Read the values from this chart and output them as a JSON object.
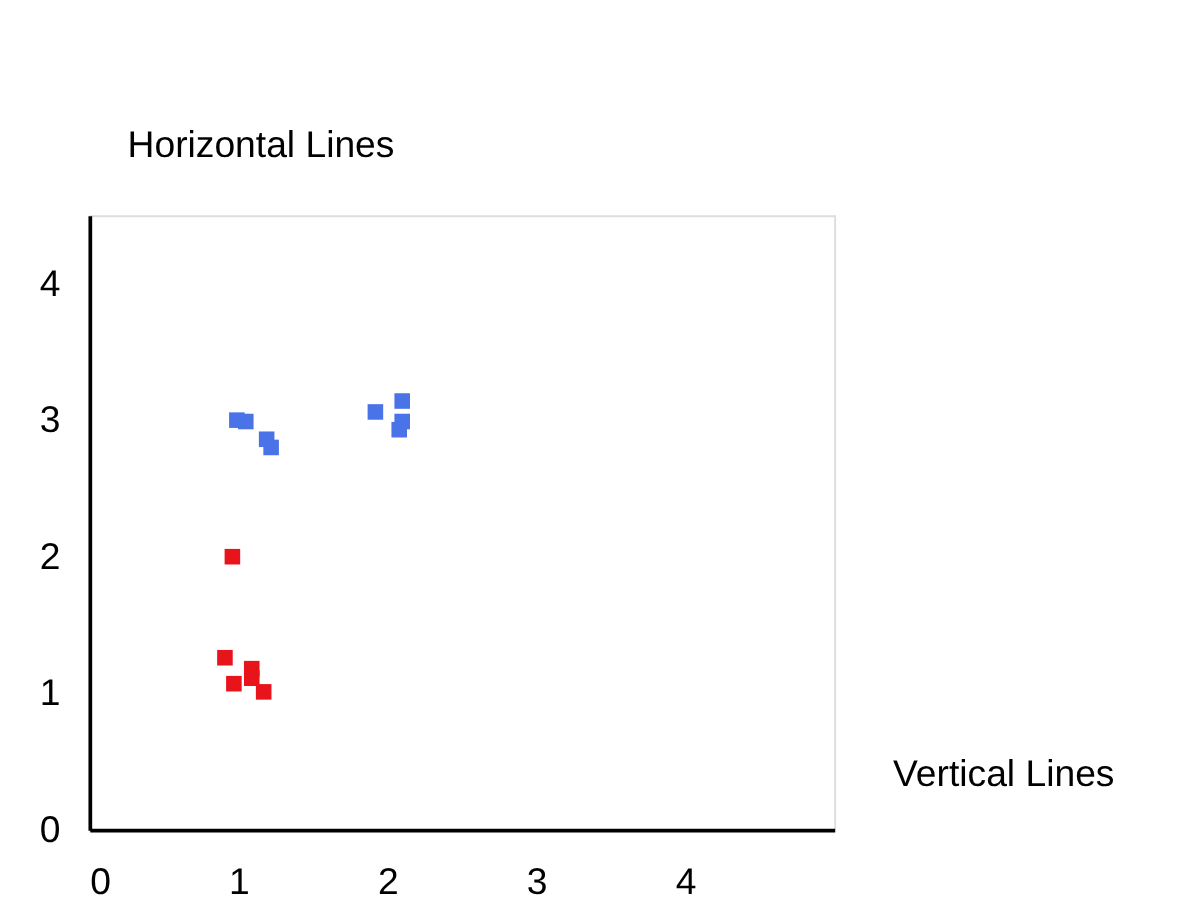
{
  "chart_data": {
    "type": "scatter",
    "xlabel": "Vertical Lines",
    "ylabel": "Horizontal Lines",
    "series": [
      {
        "color": "#e8141c",
        "x": [
          0.96,
          0.91,
          0.97,
          1.09,
          1.09,
          1.17
        ],
        "values": [
          2.0,
          1.26,
          1.07,
          1.18,
          1.11,
          1.01
        ]
      },
      {
        "color": "#4a73e8",
        "x": [
          0.99,
          1.05,
          1.19,
          1.22,
          1.92,
          2.1,
          2.1,
          2.08
        ],
        "values": [
          3.0,
          2.99,
          2.86,
          2.8,
          3.06,
          3.14,
          2.99,
          2.93
        ]
      }
    ],
    "xlim": [
      0,
      5
    ],
    "ylim": [
      0,
      4.5
    ],
    "xticks": [
      0,
      1,
      2,
      3,
      4
    ],
    "yticks": [
      0,
      1,
      2,
      3,
      4
    ],
    "marker": "square",
    "grid": false,
    "legend": false
  }
}
